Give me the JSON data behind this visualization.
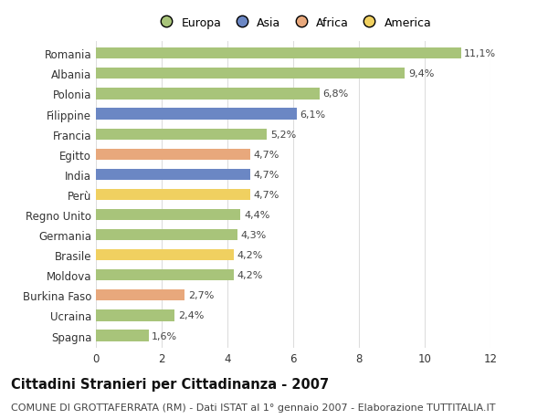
{
  "countries": [
    "Romania",
    "Albania",
    "Polonia",
    "Filippine",
    "Francia",
    "Egitto",
    "India",
    "Perù",
    "Regno Unito",
    "Germania",
    "Brasile",
    "Moldova",
    "Burkina Faso",
    "Ucraina",
    "Spagna"
  ],
  "values": [
    11.1,
    9.4,
    6.8,
    6.1,
    5.2,
    4.7,
    4.7,
    4.7,
    4.4,
    4.3,
    4.2,
    4.2,
    2.7,
    2.4,
    1.6
  ],
  "labels": [
    "11,1%",
    "9,4%",
    "6,8%",
    "6,1%",
    "5,2%",
    "4,7%",
    "4,7%",
    "4,7%",
    "4,4%",
    "4,3%",
    "4,2%",
    "4,2%",
    "2,7%",
    "2,4%",
    "1,6%"
  ],
  "continents": [
    "Europa",
    "Europa",
    "Europa",
    "Asia",
    "Europa",
    "Africa",
    "Asia",
    "America",
    "Europa",
    "Europa",
    "America",
    "Europa",
    "Africa",
    "Europa",
    "Europa"
  ],
  "colors": {
    "Europa": "#a8c47a",
    "Asia": "#6b87c4",
    "Africa": "#e8a87c",
    "America": "#f0d060"
  },
  "title": "Cittadini Stranieri per Cittadinanza - 2007",
  "subtitle": "COMUNE DI GROTTAFERRATA (RM) - Dati ISTAT al 1° gennaio 2007 - Elaborazione TUTTITALIA.IT",
  "xlim": [
    0,
    12
  ],
  "xticks": [
    0,
    2,
    4,
    6,
    8,
    10,
    12
  ],
  "background_color": "#ffffff",
  "grid_color": "#dddddd",
  "bar_height": 0.55,
  "label_fontsize": 8,
  "title_fontsize": 10.5,
  "subtitle_fontsize": 8,
  "tick_fontsize": 8.5,
  "legend_fontsize": 9
}
